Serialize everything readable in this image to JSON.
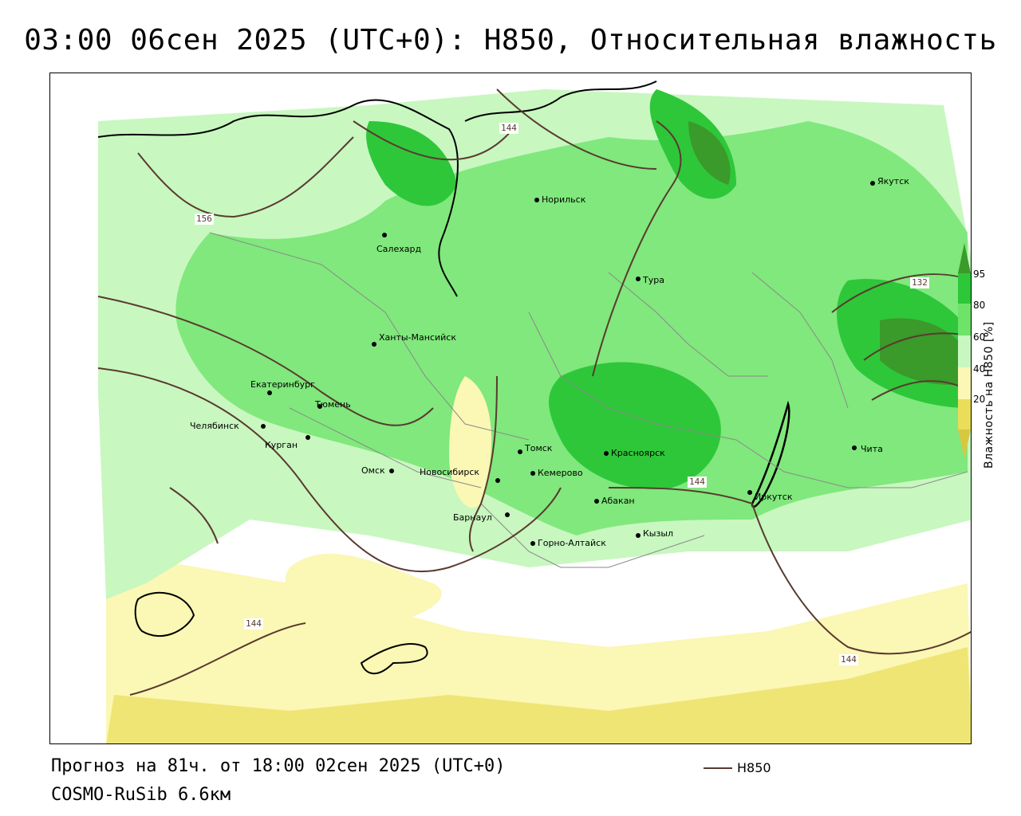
{
  "title": "03:00 06сен 2025 (UTC+0): H850, Относительная влажность",
  "colorbar": {
    "title": "Влажность на H850 [%]",
    "ticks": [
      "95",
      "80",
      "60",
      "40",
      "20"
    ],
    "colors": [
      "#3a9a2a",
      "#2ec73a",
      "#6ee36a",
      "#c8f7c0",
      "#ffffff",
      "#fbf7b4",
      "#eadd5a",
      "#d8c840"
    ]
  },
  "cities": [
    {
      "name": "Якутск"
    },
    {
      "name": "Норильск"
    },
    {
      "name": "Салехард"
    },
    {
      "name": "Тура"
    },
    {
      "name": "Ханты-Мансийск"
    },
    {
      "name": "Екатеринбург"
    },
    {
      "name": "Тюмень"
    },
    {
      "name": "Челябинск"
    },
    {
      "name": "Курган"
    },
    {
      "name": "Омск"
    },
    {
      "name": "Новосибирск"
    },
    {
      "name": "Томск"
    },
    {
      "name": "Кемерово"
    },
    {
      "name": "Красноярск"
    },
    {
      "name": "Барнаул"
    },
    {
      "name": "Абакан"
    },
    {
      "name": "Иркутск"
    },
    {
      "name": "Чита"
    },
    {
      "name": "Кызыл"
    },
    {
      "name": "Горно-Алтайск"
    }
  ],
  "contour_labels": [
    "144",
    "156",
    "132",
    "144",
    "144",
    "144"
  ],
  "footer": {
    "forecast": "Прогноз на 81ч. от 18:00 02сен 2025 (UTC+0)",
    "model": "COSMO-RuSib 6.6км"
  },
  "legend": {
    "label": "H850",
    "color": "#5a3a30"
  }
}
